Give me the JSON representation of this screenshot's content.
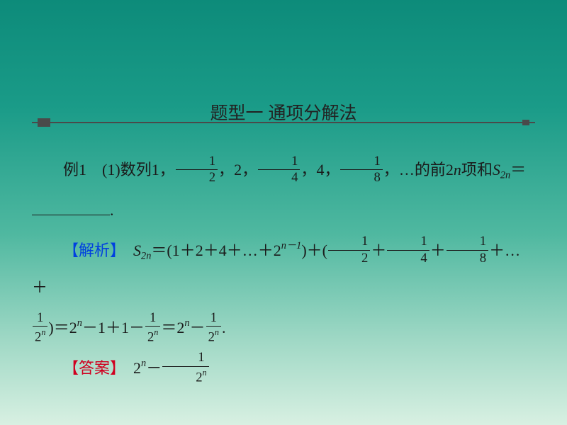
{
  "background": {
    "gradient_colors": [
      "#0d8b7a",
      "#1a9b88",
      "#4fb8a0",
      "#9fd8c5",
      "#d8f0e2"
    ],
    "gradient_stops": [
      0,
      25,
      55,
      80,
      100
    ]
  },
  "header": {
    "title": "题型一 通项分解法",
    "title_fontsize": 25,
    "line_color": "#4a4a4a",
    "knob_color": "#4a4a4a"
  },
  "problem": {
    "label": "例1",
    "number": "(1)",
    "text_pre": "数列1，",
    "seq_fracs": [
      {
        "num": "1",
        "den": "2"
      },
      {
        "num": "1",
        "den": "4"
      },
      {
        "num": "1",
        "den": "8"
      }
    ],
    "seq_ints": [
      "2",
      "4"
    ],
    "ellipsis": "…",
    "text_mid": "的前",
    "term_count": "2n",
    "text_sum": "项和",
    "sum_symbol": "S",
    "sum_subscript": "2n",
    "equals": "＝"
  },
  "analysis": {
    "label": "【解析】",
    "label_color": "#0040e0",
    "working": {
      "lhs": {
        "sym": "S",
        "sub": "2n"
      },
      "group1_terms": [
        "1",
        "2",
        "4"
      ],
      "group1_last": {
        "base": "2",
        "exp": "n－1"
      },
      "group2_fracs": [
        {
          "num": "1",
          "den": "2"
        },
        {
          "num": "1",
          "den": "4"
        },
        {
          "num": "1",
          "den": "8"
        }
      ],
      "group2_last": {
        "num": "1",
        "den_base": "2",
        "den_exp": "n"
      },
      "step2_t1": {
        "base": "2",
        "exp": "n"
      },
      "step2_minus1": "1",
      "step2_plus1": "1",
      "step2_frac": {
        "num": "1",
        "den_base": "2",
        "den_exp": "n"
      },
      "result_t1": {
        "base": "2",
        "exp": "n"
      },
      "result_frac": {
        "num": "1",
        "den_base": "2",
        "den_exp": "n"
      }
    }
  },
  "answer": {
    "label": "【答案】",
    "label_color": "#d00020",
    "result_t1": {
      "base": "2",
      "exp": "n"
    },
    "result_frac": {
      "num": "1",
      "den_base": "2",
      "den_exp": "n"
    }
  },
  "typography": {
    "body_fontsize": 22,
    "body_color": "#1a1a1a",
    "line_height": 2.4,
    "font_family_cjk": "SimSun",
    "font_family_math": "Times New Roman"
  }
}
